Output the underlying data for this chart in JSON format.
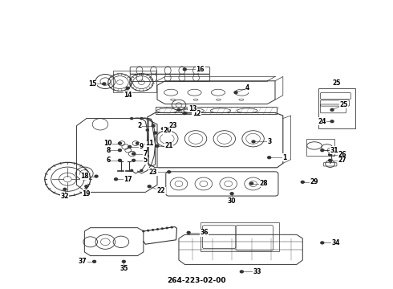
{
  "title": "264-223-02-00",
  "bg": "#f0f0f0",
  "lc": "#333333",
  "tc": "#000000",
  "fw": 4.9,
  "fh": 3.6,
  "dpi": 100,
  "label_positions": {
    "1": [
      0.685,
      0.455,
      0.04,
      0.0
    ],
    "2": [
      0.39,
      0.565,
      -0.035,
      0.0
    ],
    "3": [
      0.645,
      0.51,
      0.04,
      0.0
    ],
    "4": [
      0.6,
      0.68,
      0.03,
      0.015
    ],
    "5": [
      0.34,
      0.445,
      0.03,
      0.0
    ],
    "6": [
      0.305,
      0.445,
      -0.03,
      0.0
    ],
    "7": [
      0.34,
      0.468,
      0.03,
      0.0
    ],
    "8": [
      0.305,
      0.48,
      -0.03,
      0.0
    ],
    "9": [
      0.33,
      0.492,
      0.03,
      0.0
    ],
    "10": [
      0.305,
      0.504,
      -0.03,
      0.0
    ],
    "11": [
      0.35,
      0.504,
      0.03,
      0.0
    ],
    "12": [
      0.47,
      0.608,
      0.03,
      0.0
    ],
    "13": [
      0.455,
      0.62,
      0.035,
      0.005
    ],
    "14": [
      0.325,
      0.695,
      0.0,
      -0.025
    ],
    "15": [
      0.265,
      0.71,
      -0.03,
      0.0
    ],
    "16": [
      0.47,
      0.76,
      0.04,
      0.0
    ],
    "17": [
      0.295,
      0.38,
      0.03,
      0.0
    ],
    "18": [
      0.245,
      0.39,
      -0.03,
      0.0
    ],
    "19": [
      0.22,
      0.355,
      0.0,
      -0.025
    ],
    "20": [
      0.395,
      0.54,
      0.03,
      0.008
    ],
    "21": [
      0.4,
      0.495,
      0.03,
      0.0
    ],
    "22": [
      0.38,
      0.355,
      0.03,
      -0.015
    ],
    "23a": [
      0.415,
      0.555,
      0.025,
      0.01
    ],
    "23b": [
      0.43,
      0.405,
      -0.04,
      0.0
    ],
    "24": [
      0.845,
      0.58,
      -0.025,
      0.0
    ],
    "25": [
      0.845,
      0.62,
      0.03,
      0.018
    ],
    "26": [
      0.84,
      0.465,
      0.03,
      0.0
    ],
    "27": [
      0.84,
      0.445,
      0.03,
      0.0
    ],
    "28": [
      0.64,
      0.365,
      0.03,
      0.0
    ],
    "29": [
      0.77,
      0.37,
      0.03,
      0.0
    ],
    "30": [
      0.59,
      0.33,
      0.0,
      -0.025
    ],
    "31": [
      0.82,
      0.48,
      0.03,
      0.0
    ],
    "32": [
      0.165,
      0.345,
      0.0,
      -0.025
    ],
    "33": [
      0.615,
      0.06,
      0.04,
      0.0
    ],
    "34": [
      0.82,
      0.16,
      0.035,
      0.0
    ],
    "35": [
      0.315,
      0.095,
      0.0,
      -0.025
    ],
    "36": [
      0.48,
      0.195,
      0.04,
      0.0
    ],
    "37": [
      0.24,
      0.095,
      -0.03,
      0.0
    ]
  }
}
